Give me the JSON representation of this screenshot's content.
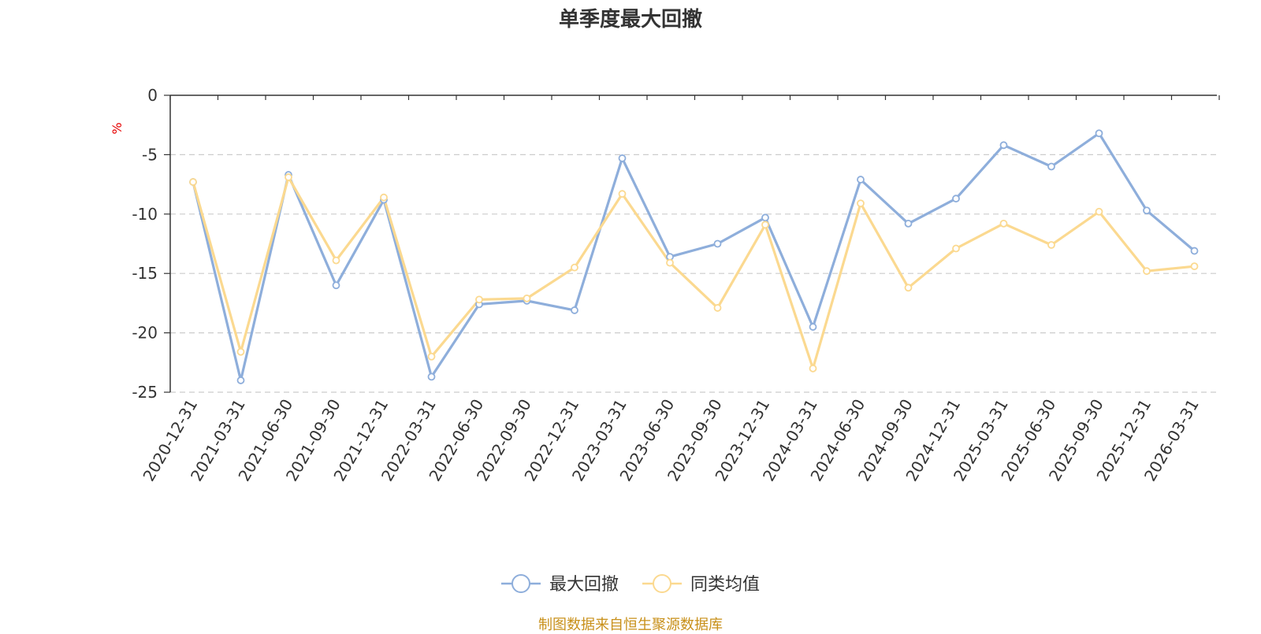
{
  "chart_data": {
    "type": "line",
    "title": "单季度最大回撤",
    "ylabel": "%",
    "ylim": [
      -25,
      0
    ],
    "yticks": [
      0,
      -5,
      -10,
      -15,
      -20,
      -25
    ],
    "grid": true,
    "legend_position": "bottom",
    "categories": [
      "2020-12-31",
      "2021-03-31",
      "2021-06-30",
      "2021-09-30",
      "2021-12-31",
      "2022-03-31",
      "2022-06-30",
      "2022-09-30",
      "2022-12-31",
      "2023-03-31",
      "2023-06-30",
      "2023-09-30",
      "2023-12-31",
      "2024-03-31",
      "2024-06-30",
      "2024-09-30",
      "2024-12-31",
      "2025-03-31",
      "2025-06-30",
      "2025-09-30",
      "2025-12-31",
      "2026-03-31"
    ],
    "series": [
      {
        "name": "最大回撤",
        "color": "#8eaedb",
        "values": [
          -7.3,
          -24.0,
          -6.7,
          -16.0,
          -8.8,
          -23.7,
          -17.6,
          -17.3,
          -18.1,
          -5.3,
          -13.6,
          -12.5,
          -10.3,
          -19.5,
          -7.1,
          -10.8,
          -8.7,
          -4.2,
          -6.0,
          -3.2,
          -9.7,
          -13.1
        ]
      },
      {
        "name": "同类均值",
        "color": "#fbd990",
        "values": [
          -7.3,
          -21.6,
          -6.9,
          -13.9,
          -8.6,
          -22.0,
          -17.2,
          -17.1,
          -14.5,
          -8.3,
          -14.1,
          -17.9,
          -10.9,
          -23.0,
          -9.1,
          -16.2,
          -12.9,
          -10.8,
          -12.6,
          -9.8,
          -14.8,
          -14.4
        ]
      }
    ]
  },
  "footer": {
    "source": "制图数据来自恒生聚源数据库"
  }
}
